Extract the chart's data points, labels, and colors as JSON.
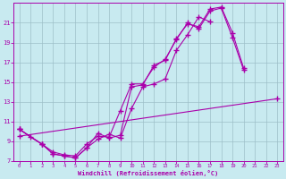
{
  "xlabel": "Windchill (Refroidissement éolien,°C)",
  "ylabel": "",
  "bg_color": "#c8eaf0",
  "line_color": "#aa00aa",
  "grid_color": "#9dbfc8",
  "xlim": [
    -0.5,
    23.5
  ],
  "ylim": [
    7,
    23
  ],
  "xticks": [
    0,
    1,
    2,
    3,
    4,
    5,
    6,
    7,
    8,
    9,
    10,
    11,
    12,
    13,
    14,
    15,
    16,
    17,
    18,
    19,
    20,
    21,
    22,
    23
  ],
  "yticks": [
    7,
    9,
    11,
    13,
    15,
    17,
    19,
    21
  ],
  "series": [
    {
      "x": [
        0,
        1,
        2,
        3,
        4,
        5,
        6,
        7,
        8,
        9,
        10,
        11,
        12,
        13,
        14,
        15,
        16,
        17,
        18,
        19,
        20,
        21,
        22
      ],
      "y": [
        10.2,
        9.4,
        8.7,
        7.9,
        7.6,
        7.5,
        8.7,
        9.5,
        9.4,
        12.1,
        14.8,
        14.8,
        16.5,
        17.3,
        19.3,
        21.0,
        20.4,
        22.2,
        22.5,
        19.5,
        16.2,
        null,
        null
      ]
    },
    {
      "x": [
        0,
        2,
        3,
        4,
        5,
        6,
        7,
        8,
        9,
        10,
        11,
        12,
        13,
        14,
        15,
        16,
        17,
        18,
        19,
        20,
        21,
        22,
        23
      ],
      "y": [
        10.2,
        8.7,
        7.7,
        7.5,
        7.3,
        8.3,
        9.8,
        9.3,
        9.6,
        14.5,
        14.7,
        16.7,
        17.2,
        19.4,
        20.9,
        20.6,
        22.4,
        22.6,
        20.0,
        16.4,
        null,
        null,
        null
      ]
    },
    {
      "x": [
        0,
        2,
        3,
        4,
        5,
        6,
        7,
        8,
        9,
        10,
        11,
        12,
        13,
        14,
        15,
        16,
        17
      ],
      "y": [
        10.2,
        8.7,
        7.7,
        7.5,
        7.3,
        8.3,
        9.2,
        9.7,
        9.3,
        12.3,
        14.5,
        14.8,
        15.3,
        18.2,
        19.8,
        21.6,
        21.1
      ]
    },
    {
      "x": [
        0,
        23
      ],
      "y": [
        9.5,
        13.3
      ]
    }
  ]
}
